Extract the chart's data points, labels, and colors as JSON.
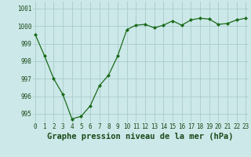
{
  "x": [
    0,
    1,
    2,
    3,
    4,
    5,
    6,
    7,
    8,
    9,
    10,
    11,
    12,
    13,
    14,
    15,
    16,
    17,
    18,
    19,
    20,
    21,
    22,
    23
  ],
  "y": [
    999.5,
    998.3,
    997.0,
    996.1,
    994.7,
    994.85,
    995.45,
    996.6,
    997.2,
    998.3,
    999.8,
    1000.05,
    1000.1,
    999.9,
    1000.05,
    1000.3,
    1000.05,
    1000.35,
    1000.45,
    1000.4,
    1000.1,
    1000.15,
    1000.35,
    1000.45
  ],
  "line_color": "#1a6b1a",
  "marker_color": "#1a6b1a",
  "bg_color": "#cce8e8",
  "grid_color": "#aacccc",
  "title": "Graphe pression niveau de la mer (hPa)",
  "ylabel_ticks": [
    995,
    996,
    997,
    998,
    999,
    1000,
    1001
  ],
  "xlabel_ticks": [
    0,
    1,
    2,
    3,
    4,
    5,
    6,
    7,
    8,
    9,
    10,
    11,
    12,
    13,
    14,
    15,
    16,
    17,
    18,
    19,
    20,
    21,
    22,
    23
  ],
  "ylim": [
    994.5,
    1001.4
  ],
  "xlim": [
    -0.3,
    23.3
  ],
  "title_fontsize": 7.5,
  "tick_fontsize": 5.5,
  "title_color": "#1a4a1a",
  "tick_color": "#1a4a1a"
}
